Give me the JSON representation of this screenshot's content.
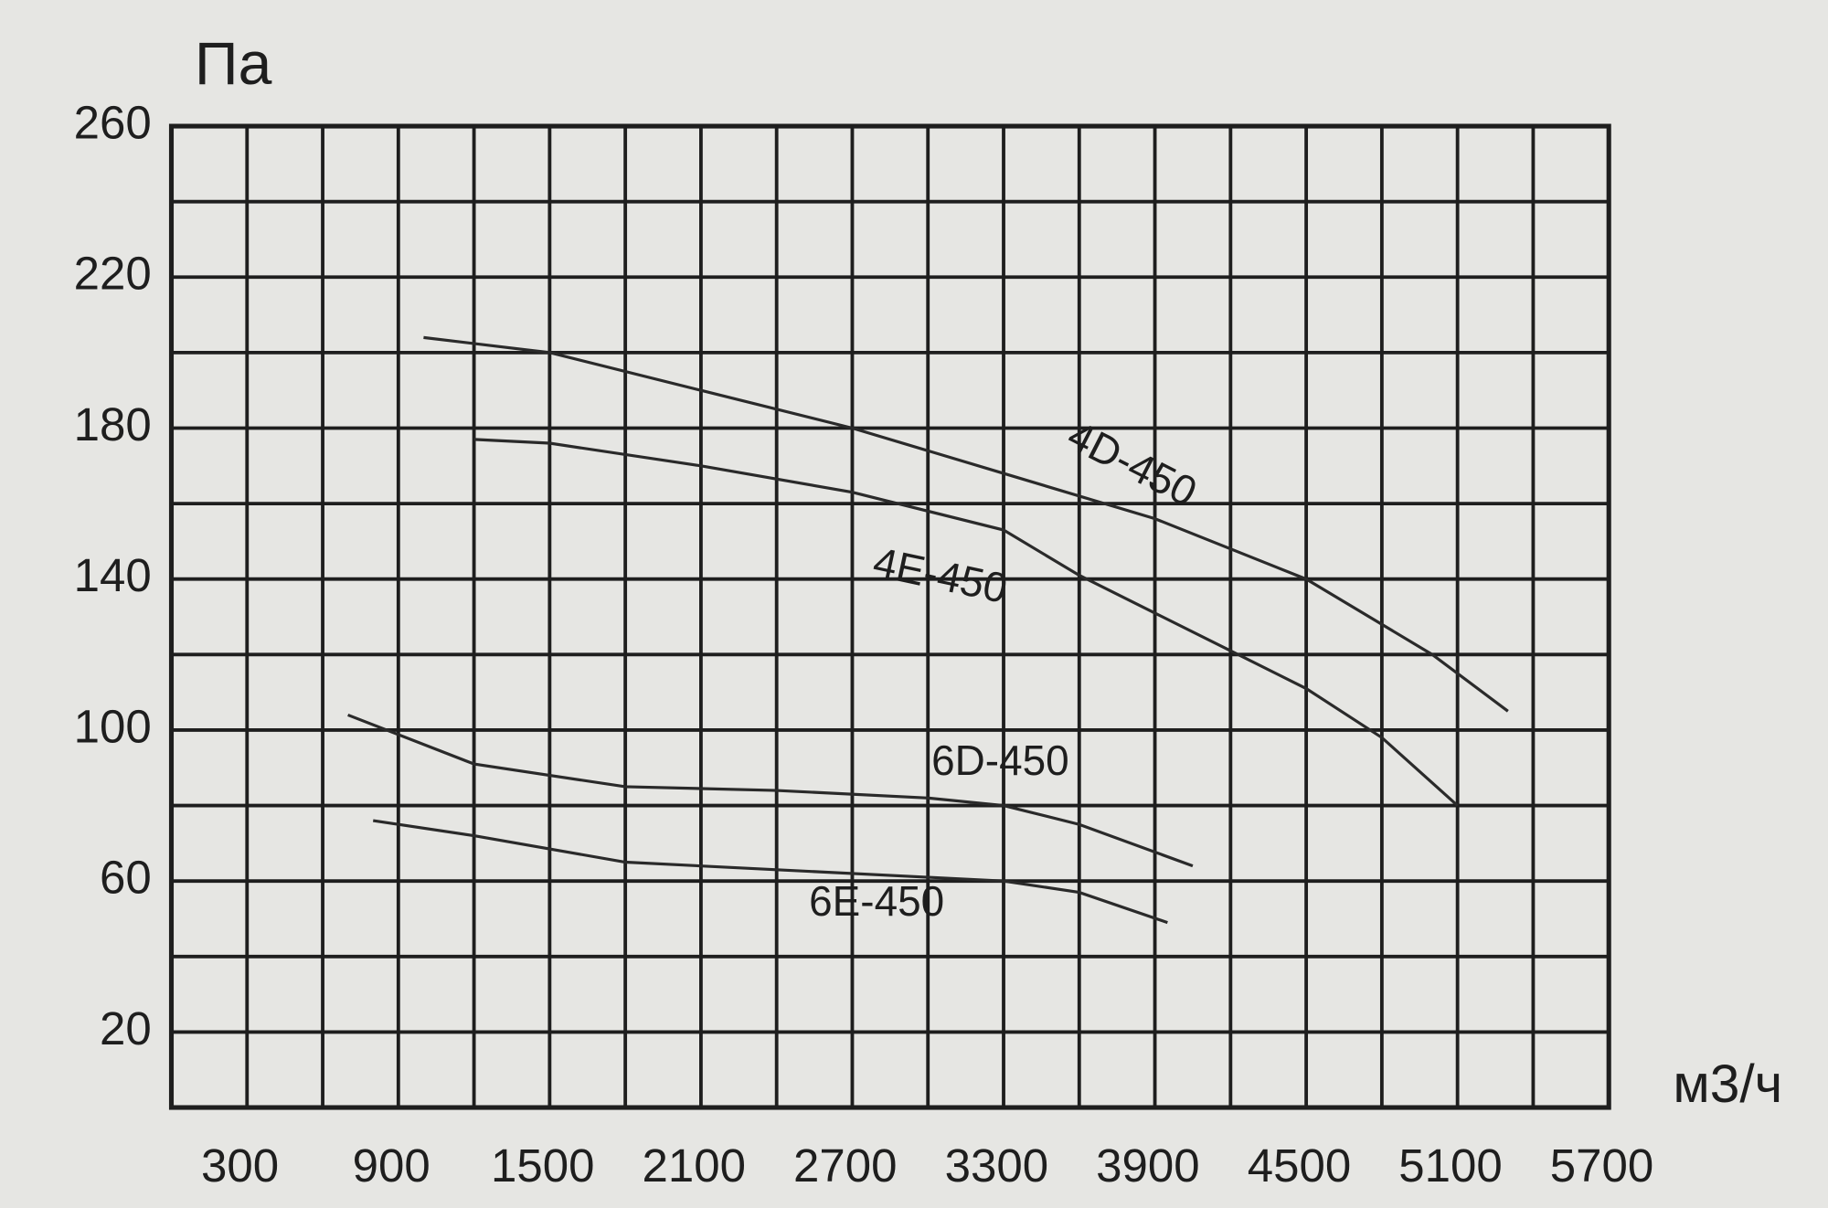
{
  "chart_data": {
    "type": "line",
    "y_label": "Па",
    "x_label": "м3/ч",
    "xlim": [
      0,
      5700
    ],
    "xticks": [
      300,
      900,
      1500,
      2100,
      2700,
      3300,
      3900,
      4500,
      5100,
      5700
    ],
    "ylim": [
      0,
      260
    ],
    "yticks": [
      20,
      60,
      100,
      140,
      180,
      220,
      260
    ],
    "grid": true,
    "series": [
      {
        "name": "4D-450",
        "color": "#2a2a2a",
        "x": [
          1000,
          1500,
          2100,
          2700,
          3300,
          3900,
          4500,
          5000,
          5300
        ],
        "values": [
          204,
          200,
          190,
          180,
          168,
          156,
          140,
          120,
          105
        ]
      },
      {
        "name": "4E-450",
        "color": "#2a2a2a",
        "x": [
          1200,
          1500,
          2100,
          2700,
          3300,
          3600,
          3900,
          4200,
          4500,
          4800,
          5100
        ],
        "values": [
          177,
          176,
          170,
          163,
          153,
          141,
          131,
          121,
          111,
          98,
          80
        ]
      },
      {
        "name": "6D-450",
        "color": "#2a2a2a",
        "x": [
          700,
          1200,
          1800,
          2400,
          3000,
          3300,
          3600,
          4050
        ],
        "values": [
          104,
          91,
          85,
          84,
          82,
          80,
          75,
          64
        ]
      },
      {
        "name": "6E-450",
        "color": "#2a2a2a",
        "x": [
          800,
          1200,
          1800,
          2400,
          3000,
          3300,
          3600,
          3950
        ],
        "values": [
          76,
          72,
          65,
          63,
          61,
          60,
          57,
          49
        ]
      }
    ]
  }
}
